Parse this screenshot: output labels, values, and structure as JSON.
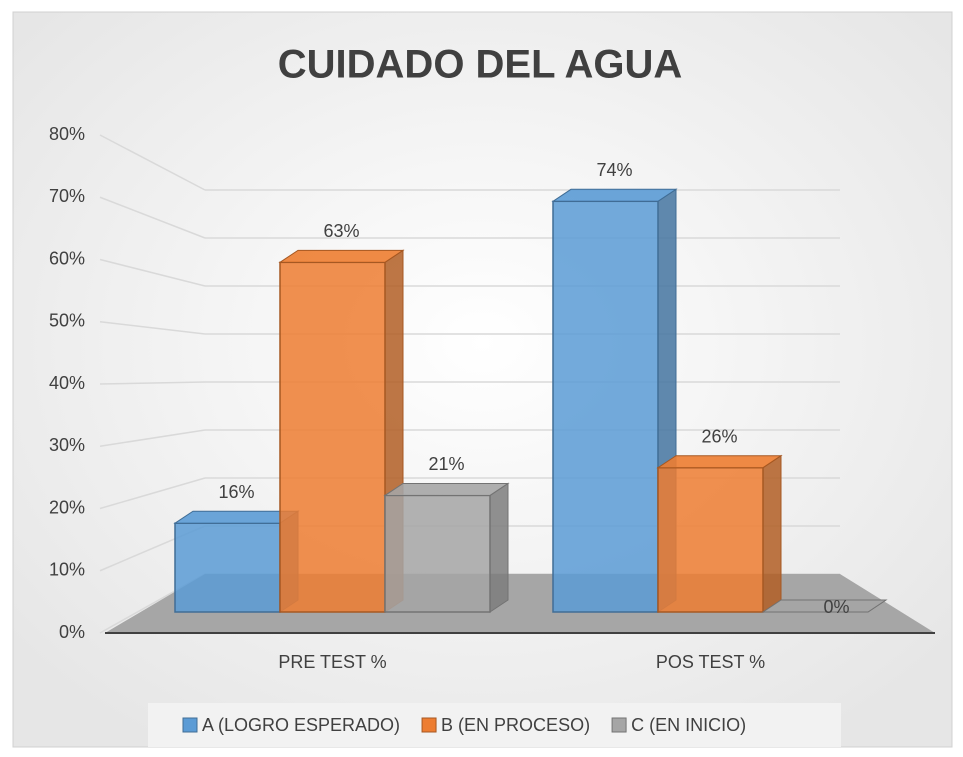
{
  "chart_data": {
    "type": "bar3d",
    "title": "CUIDADO DEL AGUA",
    "categories": [
      "PRE TEST %",
      "POS TEST %"
    ],
    "series": [
      {
        "name": "A (LOGRO ESPERADO)",
        "color": "#5b9bd5",
        "values": [
          16,
          74
        ],
        "value_labels": [
          "16%",
          "74%"
        ]
      },
      {
        "name": "B (EN PROCESO)",
        "color": "#ed7d31",
        "values": [
          63,
          26
        ],
        "value_labels": [
          "63%",
          "26%"
        ]
      },
      {
        "name": "C (EN INICIO)",
        "color": "#a5a5a5",
        "values": [
          21,
          0
        ],
        "value_labels": [
          "21%",
          "0%"
        ]
      }
    ],
    "ylim": [
      0,
      80
    ],
    "yticks": [
      {
        "value": 0,
        "label": "0%"
      },
      {
        "value": 10,
        "label": "10%"
      },
      {
        "value": 20,
        "label": "20%"
      },
      {
        "value": 30,
        "label": "30%"
      },
      {
        "value": 40,
        "label": "40%"
      },
      {
        "value": 50,
        "label": "50%"
      },
      {
        "value": 60,
        "label": "60%"
      },
      {
        "value": 70,
        "label": "70%"
      },
      {
        "value": 80,
        "label": "80%"
      }
    ],
    "grid": true,
    "legend": "bottom"
  }
}
